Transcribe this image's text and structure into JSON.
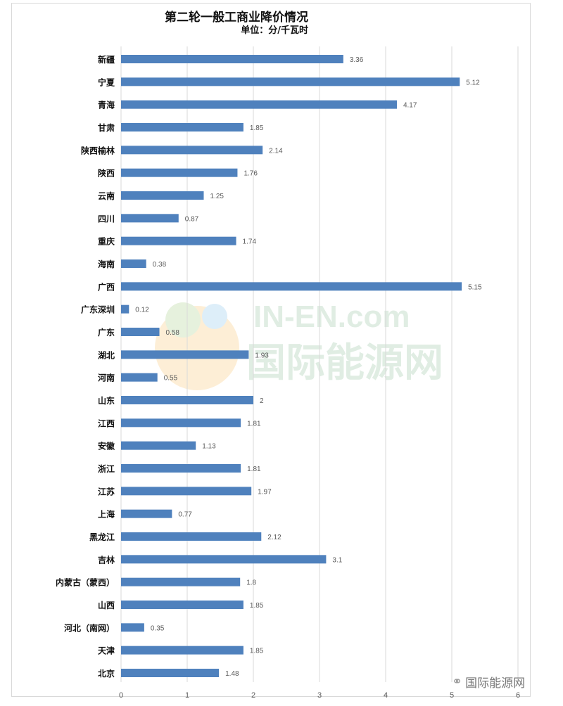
{
  "chart_data": {
    "type": "bar",
    "orientation": "horizontal",
    "title": "第二轮一般工商业降价情况",
    "subtitle": "单位：分/千瓦时",
    "categories": [
      "新疆",
      "宁夏",
      "青海",
      "甘肃",
      "陕西榆林",
      "陕西",
      "云南",
      "四川",
      "重庆",
      "海南",
      "广西",
      "广东深圳",
      "广东",
      "湖北",
      "河南",
      "山东",
      "江西",
      "安徽",
      "浙江",
      "江苏",
      "上海",
      "黑龙江",
      "吉林",
      "内蒙古（蒙西）",
      "山西",
      "河北（南网）",
      "天津",
      "北京"
    ],
    "values": [
      3.36,
      5.12,
      4.17,
      1.85,
      2.14,
      1.76,
      1.25,
      0.87,
      1.74,
      0.38,
      5.15,
      0.12,
      0.58,
      1.93,
      0.55,
      2,
      1.81,
      1.13,
      1.81,
      1.97,
      0.77,
      2.12,
      3.1,
      1.8,
      1.85,
      0.35,
      1.85,
      1.48
    ],
    "xlim": [
      0,
      6
    ],
    "x_ticks": [
      "0",
      "1",
      "2",
      "3",
      "4",
      "5",
      "6"
    ],
    "grid": true,
    "bar_color": "#4f81bd",
    "data_labels": true
  },
  "watermark": {
    "line1": "IN-EN.com",
    "line2": "国际能源网"
  },
  "footer": {
    "text": "国际能源网",
    "icon": "wechat-icon"
  }
}
